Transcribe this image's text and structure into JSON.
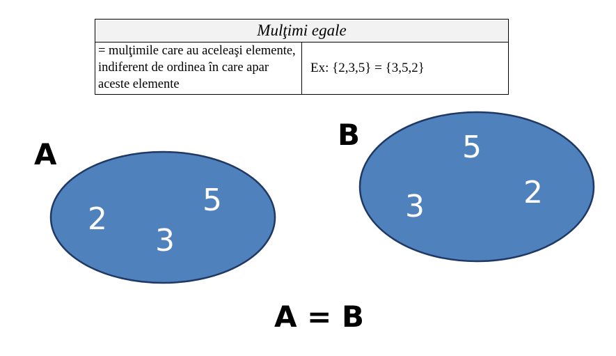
{
  "definition": {
    "title": "Mulţimi egale",
    "description": "=  mulţimile care au aceleaşi elemente,\nindiferent de ordinea în care apar\naceste elemente",
    "example": "Ex: {2,3,5} = {3,5,2}"
  },
  "sets": [
    {
      "label": "A",
      "elements": [
        "2",
        "3",
        "5"
      ]
    },
    {
      "label": "B",
      "elements": [
        "5",
        "3",
        "2"
      ]
    }
  ],
  "equation": "A = B",
  "colors": {
    "ellipse_fill": "#4f81bd",
    "ellipse_stroke": "#1f3864",
    "element_text": "#ffffff",
    "header_bg": "#f2f2f2"
  }
}
